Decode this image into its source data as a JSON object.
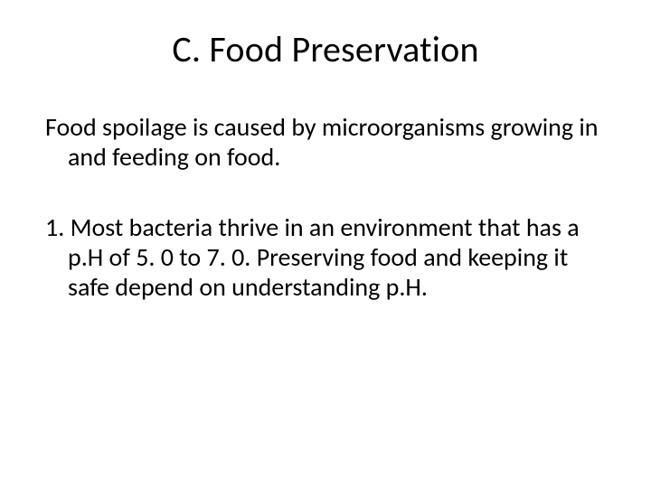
{
  "slide": {
    "title": "C. Food Preservation",
    "paragraph1": "Food spoilage is caused by microorganisms growing in and feeding on food.",
    "paragraph2": "1. Most bacteria thrive in an environment that has a p.H of 5. 0 to 7. 0. Preserving food and keeping it safe depend on understanding p.H.",
    "background_color": "#ffffff",
    "text_color": "#000000",
    "title_fontsize": 40,
    "body_fontsize": 28
  }
}
